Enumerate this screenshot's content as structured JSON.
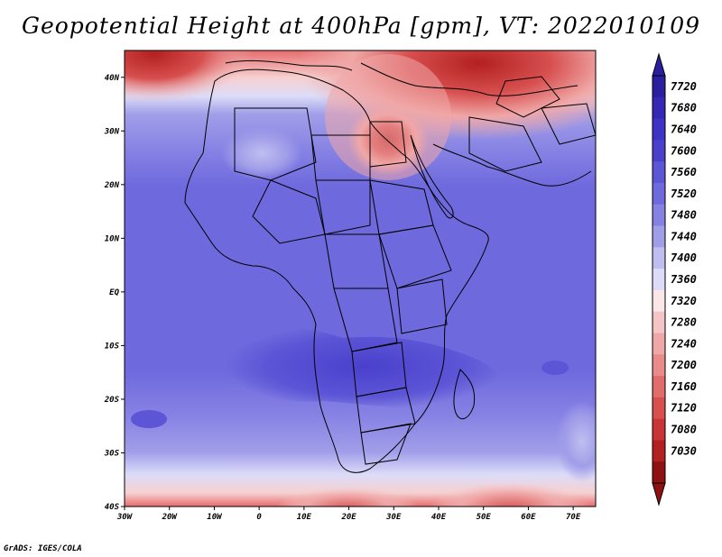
{
  "title": "Geopotential Height at 400hPa [gpm], VT: 2022010109",
  "footer": "GrADS: IGES/COLA",
  "map": {
    "lon_ticks": [
      "30W",
      "20W",
      "10W",
      "0",
      "10E",
      "20E",
      "30E",
      "40E",
      "50E",
      "60E",
      "70E"
    ],
    "lat_ticks": [
      "40N",
      "30N",
      "20N",
      "10N",
      "EQ",
      "10S",
      "20S",
      "30S",
      "40S"
    ],
    "lon_range": [
      -30,
      75
    ],
    "lat_range": [
      -40,
      45
    ]
  },
  "colorbar": {
    "labels": [
      "7720",
      "7680",
      "7640",
      "7600",
      "7560",
      "7520",
      "7480",
      "7440",
      "7400",
      "7360",
      "7320",
      "7280",
      "7240",
      "7200",
      "7160",
      "7120",
      "7080",
      "7030"
    ],
    "colors": [
      "#2b1fa0",
      "#3428b4",
      "#3d33c4",
      "#4a40cc",
      "#5c55d6",
      "#6e69dd",
      "#8682e4",
      "#a19ee9",
      "#c0bef0",
      "#dcdcf8",
      "#fae8e8",
      "#f5c4c4",
      "#f0a7a7",
      "#ea8b8b",
      "#e06c6c",
      "#d74f4f",
      "#c93535",
      "#b32020",
      "#8f1212"
    ]
  }
}
